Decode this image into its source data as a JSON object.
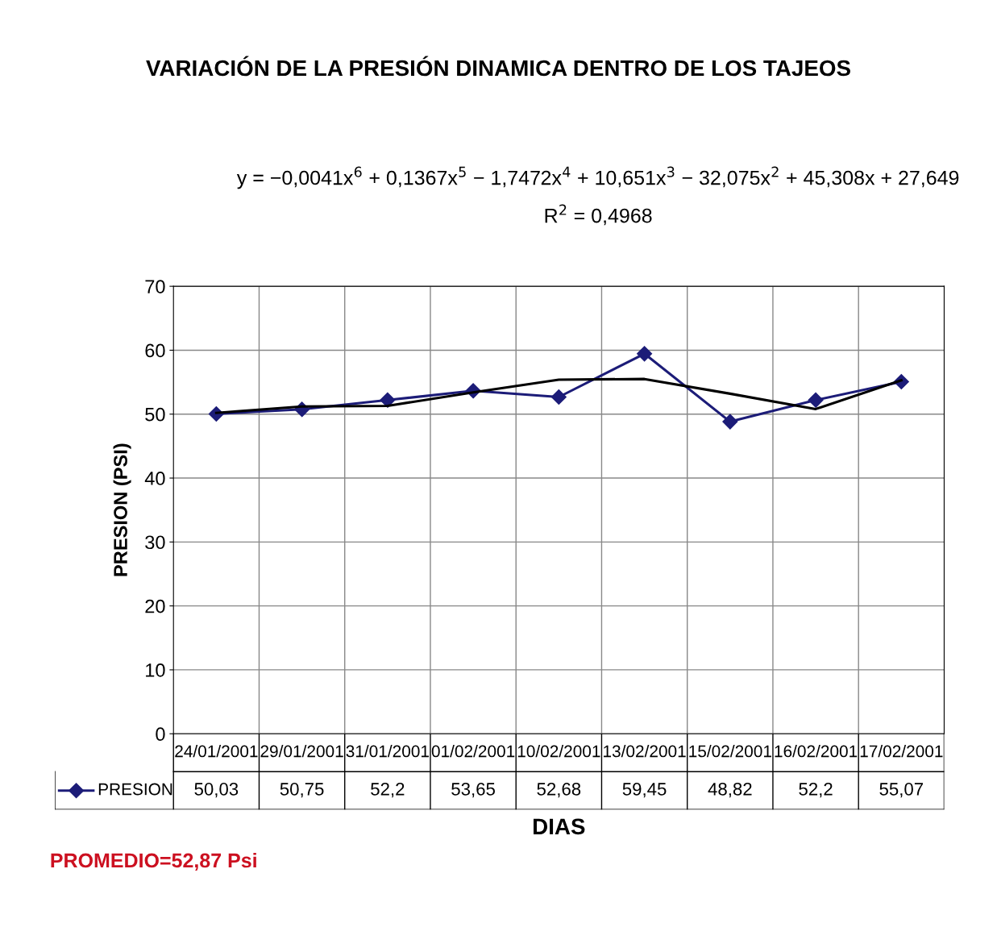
{
  "chart_data": {
    "type": "line",
    "title": "VARIACIÓN DE LA PRESIÓN DINAMICA DENTRO DE LOS TAJEOS",
    "xlabel": "DIAS",
    "ylabel": "PRESION (PSI)",
    "categories": [
      "24/01/2001",
      "29/01/2001",
      "31/01/2001",
      "01/02/2001",
      "10/02/2001",
      "13/02/2001",
      "15/02/2001",
      "16/02/2001",
      "17/02/2001"
    ],
    "series": [
      {
        "name": "PRESION",
        "color": "#1c1c78",
        "marker": "diamond",
        "values": [
          50.03,
          50.75,
          52.2,
          53.65,
          52.68,
          59.45,
          48.82,
          52.2,
          55.07
        ]
      },
      {
        "color": "#000000",
        "type": "line",
        "marker": "none",
        "values": [
          50.2,
          51.2,
          51.3,
          53.4,
          55.4,
          55.5,
          53.2,
          50.8,
          55.3
        ]
      }
    ],
    "value_labels": [
      "50,03",
      "50,75",
      "52,2",
      "53,65",
      "52,68",
      "59,45",
      "48,82",
      "52,2",
      "55,07"
    ],
    "ylim": [
      0,
      70
    ],
    "yticks": [
      0,
      10,
      20,
      30,
      40,
      50,
      60,
      70
    ],
    "grid": true,
    "annotations": [
      "y = −0,0041x$^{6}$ + 0,1367x$^{5}$ − 1,7472x$^{4}$ + 10,651x$^{3}$ − 32,075x$^{2}$ + 45,308x + 27,649",
      "R$^{2}$ = 0,4968",
      "PROMEDIO=52,87 Psi"
    ]
  }
}
